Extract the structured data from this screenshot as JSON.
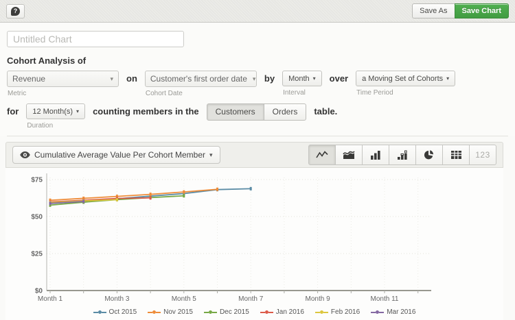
{
  "topbar": {
    "help_icon": "help-question-bubble",
    "help_glyph": "?",
    "save_as_label": "Save As",
    "save_chart_label": "Save Chart",
    "save_chart_color": "#47a447"
  },
  "title_input": {
    "value": "",
    "placeholder": "Untitled Chart"
  },
  "builder": {
    "heading": "Cohort Analysis of",
    "metric": {
      "value": "Revenue",
      "label": "Metric"
    },
    "on_word": "on",
    "cohort_date": {
      "value": "Customer's first order date",
      "label": "Cohort Date"
    },
    "by_word": "by",
    "interval": {
      "value": "Month",
      "label": "Interval"
    },
    "over_word": "over",
    "time_period": {
      "value": "a Moving Set of Cohorts",
      "label": "Time Period"
    },
    "for_word": "for",
    "duration": {
      "value": "12 Month(s)",
      "label": "Duration"
    },
    "counting_text": "counting members in the",
    "table_toggle": {
      "options": [
        "Customers",
        "Orders"
      ],
      "selected": "Customers"
    },
    "table_word": "table."
  },
  "chart_toolbar": {
    "series_selector": {
      "icon": "eye-icon",
      "label": "Cumulative Average Value Per Cohort Member"
    },
    "chart_types": [
      {
        "name": "line",
        "selected": true
      },
      {
        "name": "area",
        "selected": false
      },
      {
        "name": "bar",
        "selected": false
      },
      {
        "name": "stacked-bar",
        "selected": false
      },
      {
        "name": "pie",
        "selected": false
      },
      {
        "name": "table",
        "selected": false
      },
      {
        "name": "numbers",
        "selected": false,
        "text": "123"
      }
    ]
  },
  "chart_data": {
    "type": "line",
    "title": "",
    "xlabel": "",
    "ylabel": "",
    "x_unit": "Month",
    "x_range": [
      1,
      12
    ],
    "x_tick_months": [
      1,
      3,
      5,
      7,
      9,
      11
    ],
    "x_tick_labels": [
      "Month 1",
      "Month 3",
      "Month 5",
      "Month 7",
      "Month 9",
      "Month 11"
    ],
    "ylim": [
      0,
      75
    ],
    "y_ticks": [
      0,
      25,
      50,
      75
    ],
    "y_tick_labels": [
      "$0",
      "$25",
      "$50",
      "$75"
    ],
    "grid": "dotted",
    "legend_position": "bottom",
    "series": [
      {
        "name": "Oct 2015",
        "color": "#5a8ba5",
        "months": [
          1,
          2,
          3,
          4,
          5,
          6,
          7
        ],
        "values": [
          58.8,
          60.3,
          62.0,
          63.8,
          65.5,
          68.2,
          68.8
        ]
      },
      {
        "name": "Nov 2015",
        "color": "#ee8c39",
        "months": [
          1,
          2,
          3,
          4,
          5,
          6
        ],
        "values": [
          61.0,
          62.3,
          63.6,
          65.0,
          66.6,
          68.4
        ]
      },
      {
        "name": "Dec 2015",
        "color": "#77a845",
        "months": [
          1,
          2,
          3,
          4,
          5
        ],
        "values": [
          57.7,
          59.7,
          61.4,
          62.8,
          64.0
        ]
      },
      {
        "name": "Jan 2016",
        "color": "#dc5a49",
        "months": [
          1,
          2,
          3,
          4
        ],
        "values": [
          59.9,
          61.0,
          62.2,
          62.6
        ]
      },
      {
        "name": "Feb 2016",
        "color": "#dcc63e",
        "months": [
          1,
          2,
          3
        ],
        "values": [
          59.4,
          60.6,
          61.4
        ]
      },
      {
        "name": "Mar 2016",
        "color": "#8468a2",
        "months": [
          1,
          2
        ],
        "values": [
          58.9,
          60.2
        ]
      }
    ]
  }
}
